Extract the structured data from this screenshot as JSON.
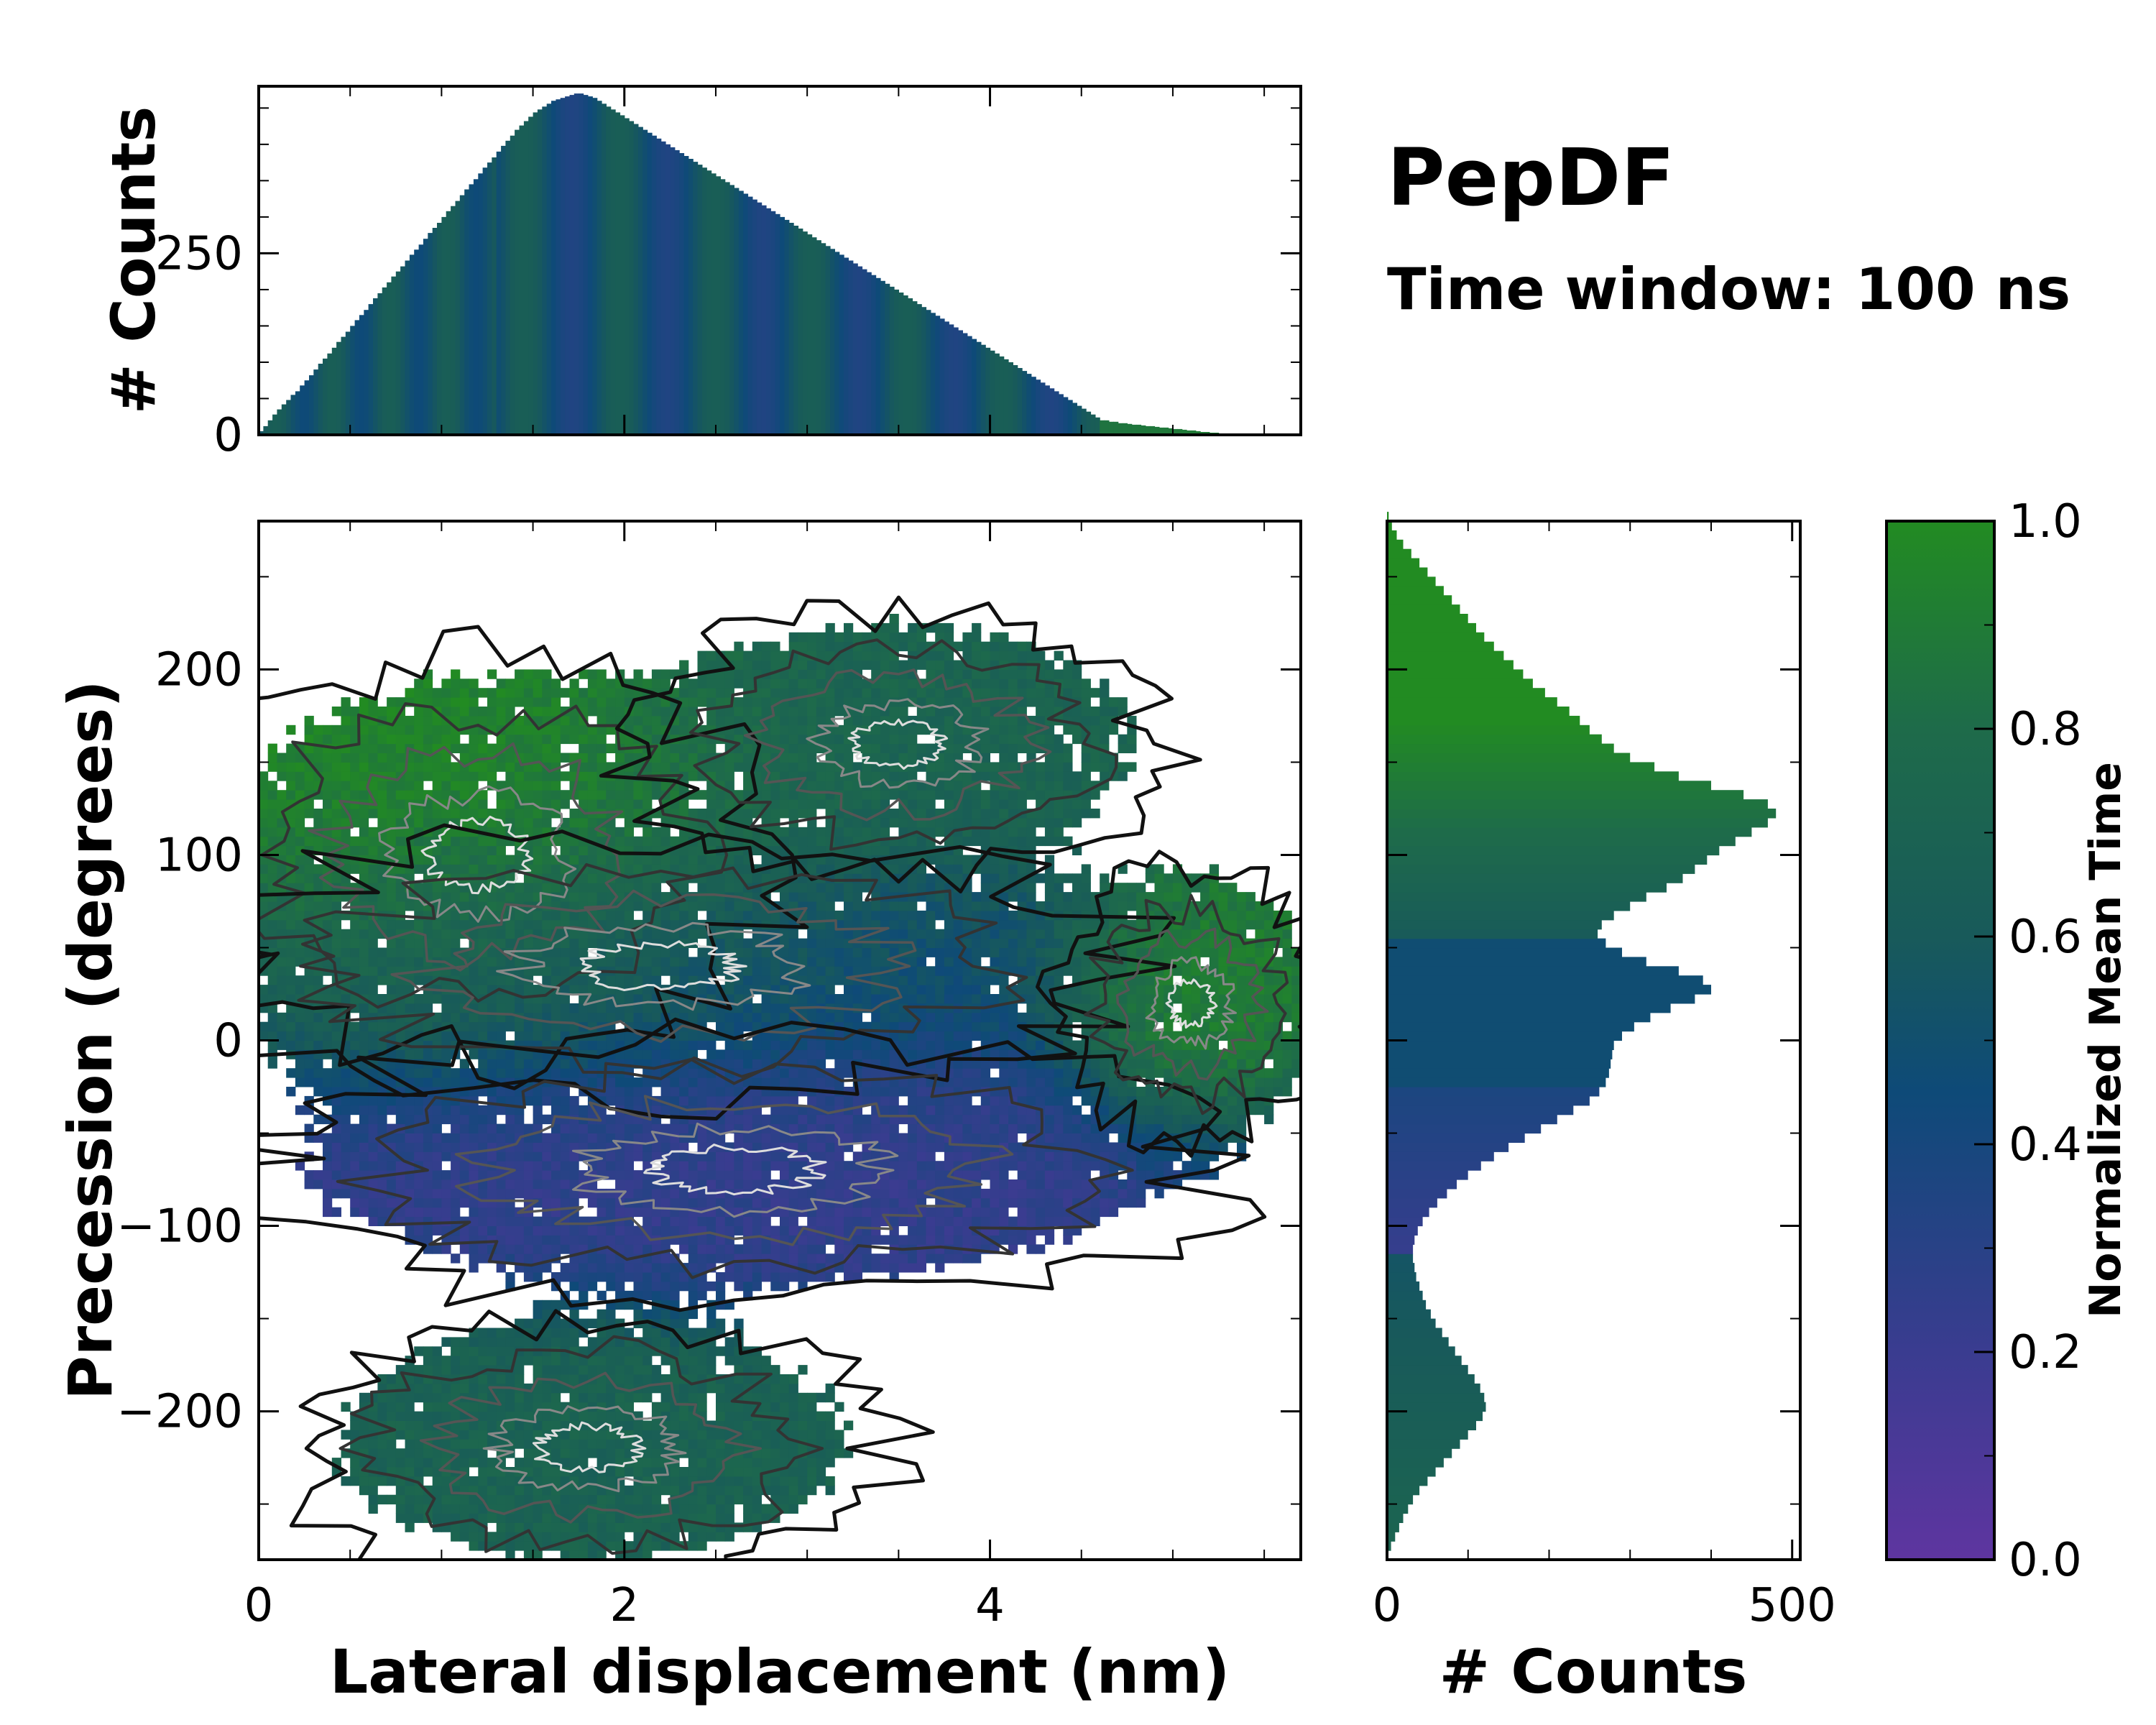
{
  "figure": {
    "title": "PepDF",
    "subtitle": "Time window: 100 ns"
  },
  "colors": {
    "cmap_stops": [
      "#5e35a0",
      "#3a3c90",
      "#0e4a78",
      "#185a5a",
      "#1e6b4a",
      "#228b22"
    ],
    "contour_dark": "#111111",
    "contour_light": "#dddddd"
  },
  "chart_data": [
    {
      "id": "top-histogram",
      "type": "bar",
      "xlim": [
        0,
        5.7
      ],
      "ylim": [
        0,
        480
      ],
      "ylabel": "# Counts",
      "yticks": [
        0,
        250
      ],
      "x_start": 0.0,
      "bin_width": 0.025,
      "counts": [
        5,
        12,
        20,
        28,
        35,
        42,
        48,
        55,
        60,
        68,
        75,
        82,
        90,
        98,
        105,
        112,
        120,
        128,
        135,
        142,
        150,
        158,
        165,
        172,
        180,
        188,
        195,
        203,
        210,
        218,
        225,
        232,
        240,
        248,
        255,
        262,
        270,
        278,
        285,
        292,
        300,
        308,
        315,
        322,
        330,
        338,
        345,
        352,
        360,
        368,
        375,
        382,
        390,
        398,
        405,
        412,
        420,
        426,
        432,
        438,
        444,
        448,
        452,
        456,
        460,
        462,
        464,
        466,
        468,
        470,
        470,
        468,
        466,
        464,
        460,
        456,
        452,
        448,
        444,
        440,
        436,
        432,
        428,
        424,
        420,
        416,
        412,
        408,
        404,
        400,
        396,
        392,
        388,
        384,
        380,
        376,
        372,
        368,
        364,
        360,
        356,
        352,
        348,
        344,
        340,
        336,
        332,
        328,
        324,
        320,
        316,
        312,
        308,
        304,
        300,
        296,
        292,
        288,
        284,
        280,
        276,
        272,
        268,
        264,
        260,
        256,
        252,
        248,
        244,
        240,
        236,
        232,
        228,
        224,
        220,
        216,
        212,
        208,
        204,
        200,
        196,
        192,
        188,
        184,
        180,
        176,
        172,
        168,
        164,
        160,
        156,
        152,
        148,
        144,
        140,
        136,
        132,
        128,
        124,
        120,
        116,
        112,
        108,
        104,
        100,
        96,
        92,
        88,
        84,
        80,
        76,
        72,
        68,
        64,
        60,
        56,
        52,
        48,
        44,
        40,
        36,
        32,
        28,
        24,
        20,
        20,
        18,
        18,
        16,
        16,
        15,
        14,
        14,
        13,
        12,
        12,
        11,
        10,
        10,
        9,
        8,
        8,
        7,
        6,
        6,
        5,
        4,
        4,
        3,
        3,
        2,
        2,
        1,
        1,
        1,
        0,
        0,
        0,
        0,
        0,
        0,
        0,
        0,
        0
      ]
    },
    {
      "id": "main-scatter",
      "type": "heatmap",
      "xlabel": "Lateral displacement (nm)",
      "ylabel": "Precession (degrees)",
      "xlim": [
        0,
        5.7
      ],
      "ylim": [
        -280,
        280
      ],
      "xticks": [
        0,
        2,
        4
      ],
      "yticks": [
        -200,
        -100,
        0,
        100,
        200
      ],
      "regions": [
        {
          "name": "upper-left-cluster",
          "cx": 1.2,
          "cy": 100,
          "sx": 0.9,
          "sy": 60,
          "time": 0.95
        },
        {
          "name": "upper-right-cluster",
          "cx": 3.5,
          "cy": 160,
          "sx": 0.8,
          "sy": 40,
          "time": 0.72
        },
        {
          "name": "central-band",
          "cx": 2.2,
          "cy": 40,
          "sx": 1.4,
          "sy": 40,
          "time": 0.5
        },
        {
          "name": "lower-band",
          "cx": 2.6,
          "cy": -70,
          "sx": 1.5,
          "sy": 40,
          "time": 0.25
        },
        {
          "name": "right-island",
          "cx": 5.1,
          "cy": 20,
          "sx": 0.4,
          "sy": 40,
          "time": 0.95
        },
        {
          "name": "bottom-cluster",
          "cx": 1.8,
          "cy": -220,
          "sx": 0.9,
          "sy": 40,
          "time": 0.7
        }
      ]
    },
    {
      "id": "right-histogram",
      "type": "bar",
      "orientation": "horizontal",
      "xlim": [
        0,
        510
      ],
      "xlabel": "# Counts",
      "xticks": [
        0,
        500
      ],
      "ylim": [
        -280,
        280
      ],
      "y_start": -275,
      "bin_width": 5,
      "counts": [
        5,
        10,
        15,
        20,
        26,
        32,
        40,
        50,
        60,
        70,
        80,
        90,
        100,
        110,
        118,
        122,
        120,
        115,
        108,
        100,
        92,
        84,
        76,
        68,
        60,
        54,
        48,
        44,
        40,
        36,
        34,
        32,
        32,
        34,
        38,
        44,
        52,
        62,
        74,
        86,
        100,
        116,
        132,
        150,
        170,
        190,
        210,
        230,
        250,
        262,
        270,
        274,
        276,
        278,
        280,
        290,
        305,
        325,
        350,
        380,
        400,
        390,
        360,
        320,
        290,
        270,
        260,
        265,
        280,
        300,
        320,
        345,
        365,
        380,
        395,
        410,
        430,
        450,
        470,
        480,
        470,
        440,
        400,
        360,
        330,
        300,
        280,
        265,
        250,
        238,
        225,
        210,
        195,
        180,
        168,
        156,
        144,
        132,
        120,
        110,
        100,
        90,
        80,
        70,
        60,
        50,
        40,
        30,
        20,
        12,
        6,
        2
      ]
    },
    {
      "id": "colorbar",
      "type": "colorbar",
      "label": "Normalized Mean Time",
      "range": [
        0,
        1
      ],
      "ticks": [
        "0.0",
        "0.2",
        "0.4",
        "0.6",
        "0.8",
        "1.0"
      ]
    }
  ]
}
